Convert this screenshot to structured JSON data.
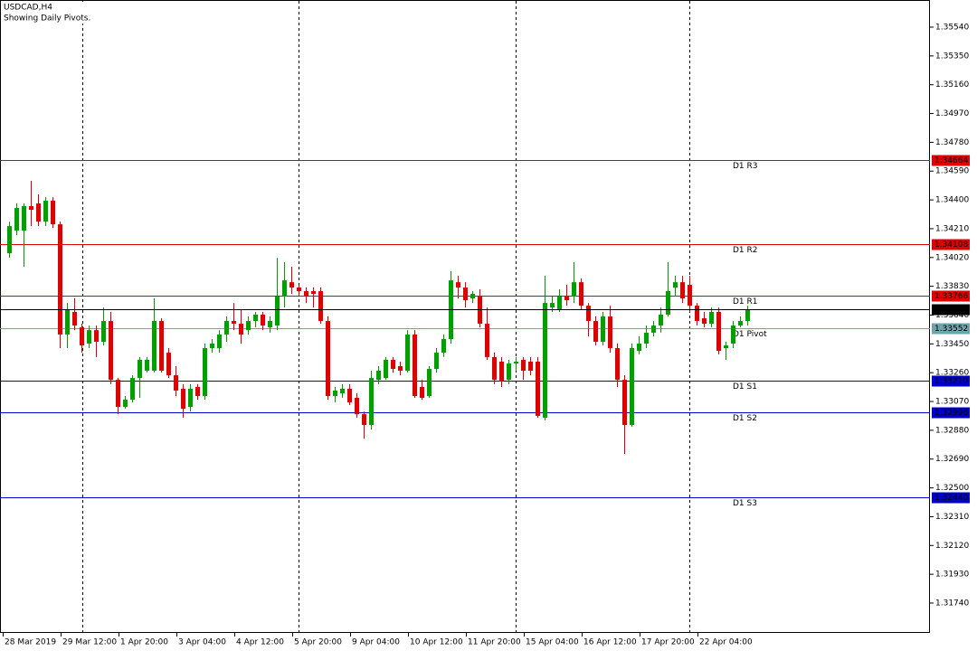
{
  "chart_data": {
    "type": "candlestick",
    "title": "USDCAD,H4",
    "subtitle": "Showing Daily Pivots.",
    "up_color": "#00a000",
    "down_color": "#e00000",
    "ylim": [
      1.31543,
      1.35719
    ],
    "yticks": [
      {
        "value": 1.3554,
        "label": "1.35540"
      },
      {
        "value": 1.3535,
        "label": "1.35350"
      },
      {
        "value": 1.3516,
        "label": "1.35160"
      },
      {
        "value": 1.3497,
        "label": "1.34970"
      },
      {
        "value": 1.3478,
        "label": "1.34780"
      },
      {
        "value": 1.3459,
        "label": "1.34590"
      },
      {
        "value": 1.344,
        "label": "1.34400"
      },
      {
        "value": 1.3421,
        "label": "1.34210"
      },
      {
        "value": 1.3402,
        "label": "1.34020"
      },
      {
        "value": 1.3383,
        "label": "1.33830"
      },
      {
        "value": 1.3364,
        "label": "1.33640"
      },
      {
        "value": 1.3345,
        "label": "1.33450"
      },
      {
        "value": 1.3326,
        "label": "1.33260"
      },
      {
        "value": 1.3307,
        "label": "1.33070"
      },
      {
        "value": 1.3288,
        "label": "1.32880"
      },
      {
        "value": 1.3269,
        "label": "1.32690"
      },
      {
        "value": 1.325,
        "label": "1.32500"
      },
      {
        "value": 1.3231,
        "label": "1.32310"
      },
      {
        "value": 1.3212,
        "label": "1.32120"
      },
      {
        "value": 1.3193,
        "label": "1.31930"
      },
      {
        "value": 1.3174,
        "label": "1.31740"
      }
    ],
    "categories": [
      "28 Mar 2019",
      null,
      null,
      null,
      null,
      null,
      null,
      null,
      "29 Mar 12:00",
      null,
      null,
      null,
      null,
      null,
      null,
      null,
      "1 Apr 20:00",
      null,
      null,
      null,
      null,
      null,
      null,
      null,
      "3 Apr 04:00",
      null,
      null,
      null,
      null,
      null,
      null,
      null,
      "4 Apr 12:00",
      null,
      null,
      null,
      null,
      null,
      null,
      null,
      "5 Apr 20:00",
      null,
      null,
      null,
      null,
      null,
      null,
      null,
      "9 Apr 04:00",
      null,
      null,
      null,
      null,
      null,
      null,
      null,
      "10 Apr 12:00",
      null,
      null,
      null,
      null,
      null,
      null,
      null,
      "11 Apr 20:00",
      null,
      null,
      null,
      null,
      null,
      null,
      null,
      "15 Apr 04:00",
      null,
      null,
      null,
      null,
      null,
      null,
      null,
      "16 Apr 12:00",
      null,
      null,
      null,
      null,
      null,
      null,
      null,
      "17 Apr 20:00",
      null,
      null,
      null,
      null,
      null,
      null,
      null,
      "22 Apr 04:00",
      null,
      null,
      null,
      null,
      null,
      null
    ],
    "ohlc": [
      [
        1.34048,
        1.34257,
        1.34018,
        1.34227
      ],
      [
        1.34198,
        1.34377,
        1.34168,
        1.34347
      ],
      [
        1.34198,
        1.34377,
        1.33959,
        1.34359
      ],
      [
        1.34359,
        1.34526,
        1.34227,
        1.34335
      ],
      [
        1.34377,
        1.34436,
        1.34227,
        1.34257
      ],
      [
        1.34257,
        1.34418,
        1.34227,
        1.34395
      ],
      [
        1.34395,
        1.34418,
        1.34215,
        1.34239
      ],
      [
        1.34239,
        1.34257,
        1.33422,
        1.33512
      ],
      [
        1.33512,
        1.3372,
        1.33422,
        1.33679
      ],
      [
        1.33661,
        1.3375,
        1.33541,
        1.33571
      ],
      [
        1.33559,
        1.33583,
        1.33392,
        1.3344
      ],
      [
        1.33452,
        1.33571,
        1.33422,
        1.33541
      ],
      [
        1.33541,
        1.33571,
        1.33363,
        1.33464
      ],
      [
        1.33464,
        1.3369,
        1.3344,
        1.33601
      ],
      [
        1.33601,
        1.33661,
        1.33184,
        1.33213
      ],
      [
        1.33213,
        1.33225,
        1.32986,
        1.33034
      ],
      [
        1.33034,
        1.33106,
        1.33022,
        1.33082
      ],
      [
        1.33082,
        1.33243,
        1.33064,
        1.33225
      ],
      [
        1.33225,
        1.33363,
        1.33094,
        1.33345
      ],
      [
        1.33273,
        1.33363,
        1.33261,
        1.33345
      ],
      [
        1.33273,
        1.3375,
        1.33261,
        1.33601
      ],
      [
        1.33601,
        1.33619,
        1.33261,
        1.33273
      ],
      [
        1.33392,
        1.33422,
        1.33225,
        1.33243
      ],
      [
        1.33243,
        1.33303,
        1.33106,
        1.33142
      ],
      [
        1.33154,
        1.33184,
        1.32963,
        1.33022
      ],
      [
        1.33034,
        1.33184,
        1.33004,
        1.33154
      ],
      [
        1.33166,
        1.33184,
        1.33082,
        1.33106
      ],
      [
        1.33106,
        1.33452,
        1.33082,
        1.33422
      ],
      [
        1.33422,
        1.33482,
        1.33392,
        1.33452
      ],
      [
        1.33422,
        1.33541,
        1.33392,
        1.33512
      ],
      [
        1.33512,
        1.33631,
        1.33464,
        1.33601
      ],
      [
        1.33601,
        1.3372,
        1.33541,
        1.33583
      ],
      [
        1.33583,
        1.33679,
        1.33452,
        1.33512
      ],
      [
        1.33541,
        1.33631,
        1.33512,
        1.33601
      ],
      [
        1.33601,
        1.33661,
        1.33559,
        1.33643
      ],
      [
        1.33643,
        1.33661,
        1.33541,
        1.33571
      ],
      [
        1.33559,
        1.33631,
        1.33524,
        1.33601
      ],
      [
        1.33571,
        1.34018,
        1.33541,
        1.33762
      ],
      [
        1.33762,
        1.33989,
        1.3369,
        1.33869
      ],
      [
        1.33857,
        1.33959,
        1.3378,
        1.33822
      ],
      [
        1.33822,
        1.3384,
        1.33762,
        1.33798
      ],
      [
        1.33798,
        1.33822,
        1.3372,
        1.33762
      ],
      [
        1.33798,
        1.33822,
        1.3369,
        1.3378
      ],
      [
        1.33798,
        1.33822,
        1.33583,
        1.33601
      ],
      [
        1.33601,
        1.33631,
        1.33082,
        1.33106
      ],
      [
        1.33106,
        1.33166,
        1.33064,
        1.33142
      ],
      [
        1.33124,
        1.33184,
        1.33094,
        1.33154
      ],
      [
        1.33154,
        1.33184,
        1.33046,
        1.33064
      ],
      [
        1.33094,
        1.33124,
        1.32963,
        1.32986
      ],
      [
        1.32986,
        1.33004,
        1.32826,
        1.32915
      ],
      [
        1.32915,
        1.33273,
        1.32885,
        1.33225
      ],
      [
        1.33213,
        1.33303,
        1.33184,
        1.33273
      ],
      [
        1.33225,
        1.33363,
        1.33213,
        1.33345
      ],
      [
        1.33345,
        1.33363,
        1.33261,
        1.33285
      ],
      [
        1.33303,
        1.33333,
        1.33243,
        1.33273
      ],
      [
        1.33273,
        1.33541,
        1.33261,
        1.33512
      ],
      [
        1.33512,
        1.33541,
        1.33094,
        1.33106
      ],
      [
        1.33166,
        1.33213,
        1.33082,
        1.33094
      ],
      [
        1.33106,
        1.33303,
        1.33094,
        1.33285
      ],
      [
        1.33285,
        1.33422,
        1.33261,
        1.33392
      ],
      [
        1.33392,
        1.33512,
        1.33363,
        1.33482
      ],
      [
        1.33482,
        1.33929,
        1.33452,
        1.33869
      ],
      [
        1.33857,
        1.33899,
        1.3375,
        1.33822
      ],
      [
        1.33822,
        1.33857,
        1.3369,
        1.33738
      ],
      [
        1.3375,
        1.33798,
        1.3372,
        1.3378
      ],
      [
        1.33762,
        1.3381,
        1.33559,
        1.33583
      ],
      [
        1.33583,
        1.3369,
        1.33345,
        1.33363
      ],
      [
        1.33363,
        1.33392,
        1.33184,
        1.33213
      ],
      [
        1.33333,
        1.33363,
        1.33166,
        1.33201
      ],
      [
        1.33213,
        1.33345,
        1.33184,
        1.33321
      ],
      [
        1.33321,
        1.33363,
        1.33273,
        1.33333
      ],
      [
        1.33345,
        1.33363,
        1.33213,
        1.33273
      ],
      [
        1.33333,
        1.33363,
        1.33243,
        1.33273
      ],
      [
        1.33333,
        1.33363,
        1.32963,
        1.32975
      ],
      [
        1.32963,
        1.33899,
        1.32945,
        1.3372
      ],
      [
        1.3369,
        1.33762,
        1.33661,
        1.3372
      ],
      [
        1.33679,
        1.3381,
        1.33661,
        1.33762
      ],
      [
        1.33762,
        1.3384,
        1.33702,
        1.33738
      ],
      [
        1.33762,
        1.33989,
        1.3372,
        1.33857
      ],
      [
        1.33857,
        1.33881,
        1.33679,
        1.33702
      ],
      [
        1.33702,
        1.3372,
        1.335,
        1.33601
      ],
      [
        1.33601,
        1.33631,
        1.3344,
        1.33464
      ],
      [
        1.33464,
        1.33661,
        1.3344,
        1.33631
      ],
      [
        1.33631,
        1.33702,
        1.33392,
        1.33422
      ],
      [
        1.33422,
        1.33452,
        1.33166,
        1.33213
      ],
      [
        1.33213,
        1.33243,
        1.32724,
        1.32915
      ],
      [
        1.32915,
        1.33452,
        1.32903,
        1.33422
      ],
      [
        1.33404,
        1.335,
        1.33381,
        1.33452
      ],
      [
        1.33452,
        1.33571,
        1.33422,
        1.33524
      ],
      [
        1.33524,
        1.33601,
        1.335,
        1.33571
      ],
      [
        1.33571,
        1.3369,
        1.33524,
        1.33643
      ],
      [
        1.33643,
        1.33989,
        1.33631,
        1.33798
      ],
      [
        1.33822,
        1.33899,
        1.33762,
        1.33857
      ],
      [
        1.33857,
        1.33899,
        1.3372,
        1.3375
      ],
      [
        1.3384,
        1.33899,
        1.33661,
        1.33702
      ],
      [
        1.33702,
        1.3372,
        1.33571,
        1.33601
      ],
      [
        1.33619,
        1.33661,
        1.33559,
        1.33583
      ],
      [
        1.33583,
        1.3369,
        1.33559,
        1.33661
      ],
      [
        1.33661,
        1.3369,
        1.33381,
        1.33404
      ],
      [
        1.33422,
        1.33464,
        1.33345,
        1.3344
      ],
      [
        1.33452,
        1.33601,
        1.33422,
        1.33571
      ],
      [
        1.33571,
        1.33631,
        1.33559,
        1.33601
      ],
      [
        1.33601,
        1.33702,
        1.33571,
        1.33679
      ]
    ],
    "levels": [
      {
        "name": "D1 R3",
        "value": 1.34664,
        "label": "1.34664",
        "color": "#e00000"
      },
      {
        "name": "D1 R2",
        "value": 1.34108,
        "label": "1.34108",
        "color": "#e00000"
      },
      {
        "name": "D1 R1",
        "value": 1.33766,
        "label": "1.33766",
        "color": "#e00000"
      },
      {
        "name": "D1 Pivot",
        "value": 1.33552,
        "label": "1.33552",
        "color": "#6fa3ab"
      },
      {
        "name": "D1 S1",
        "value": 1.3321,
        "label": "1.33210",
        "color": "#0000c8"
      },
      {
        "name": "D1 S2",
        "value": 1.32996,
        "label": "1.32996",
        "color": "#0000c8"
      },
      {
        "name": "D1 S3",
        "value": 1.3244,
        "label": "1.32440",
        "color": "#0000c8"
      }
    ],
    "current_price": {
      "value": 1.33681,
      "label": "1.33681",
      "color": "#000000"
    }
  }
}
